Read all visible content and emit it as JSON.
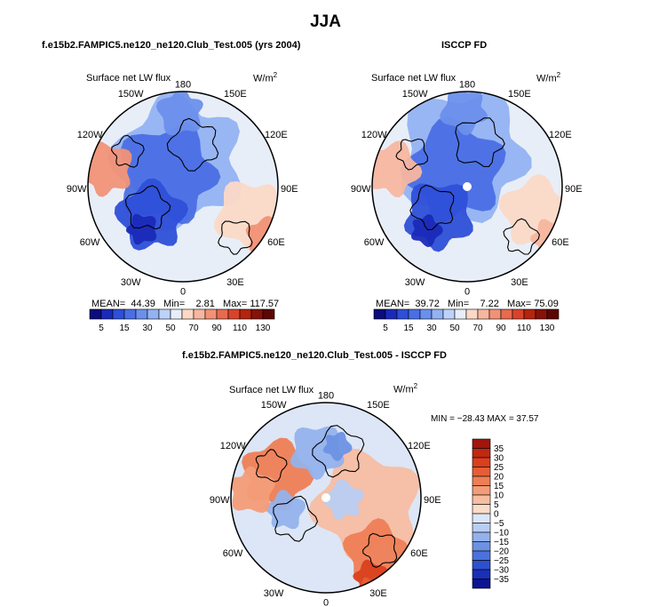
{
  "main_title": "JJA",
  "chart_data": [
    {
      "type": "heatmap",
      "projection": "north polar stereographic",
      "title": "f.e15b2.FAMPIC5.ne120_ne120.Club_Test.005 (yrs 2004)",
      "subtitle": "Surface net LW flux",
      "units": "W/m",
      "units_exp": "2",
      "longitude_labels": [
        "180",
        "150E",
        "120E",
        "90E",
        "60E",
        "30E",
        "0",
        "30W",
        "60W",
        "90W",
        "120W",
        "150W"
      ],
      "stats": {
        "mean_label": "MEAN=",
        "mean": "44.39",
        "min_label": "Min=",
        "min": "2.81",
        "max_label": "Max=",
        "max": "117.57"
      },
      "colorbar": {
        "orientation": "horizontal",
        "levels": [
          5,
          10,
          15,
          20,
          30,
          40,
          50,
          60,
          70,
          80,
          90,
          100,
          110,
          120,
          130
        ],
        "tick_labels": [
          "5",
          "15",
          "30",
          "50",
          "70",
          "90",
          "110",
          "130"
        ],
        "colors": [
          "#0c0c7c",
          "#1a2ab8",
          "#2e4fd8",
          "#4a6fe4",
          "#6b8fec",
          "#93b2f2",
          "#bcd2f8",
          "#e8eef8",
          "#fbd9c6",
          "#f7b6a0",
          "#f19277",
          "#e86a4f",
          "#d8442b",
          "#b5240f",
          "#86120a",
          "#5c0704"
        ]
      }
    },
    {
      "type": "heatmap",
      "projection": "north polar stereographic",
      "title": "ISCCP FD",
      "subtitle": "Surface net LW flux",
      "units": "W/m",
      "units_exp": "2",
      "longitude_labels": [
        "180",
        "150E",
        "120E",
        "90E",
        "60E",
        "30E",
        "0",
        "30W",
        "60W",
        "90W",
        "120W",
        "150W"
      ],
      "stats": {
        "mean_label": "MEAN=",
        "mean": "39.72",
        "min_label": "Min=",
        "min": "7.22",
        "max_label": "Max=",
        "max": "75.09"
      },
      "colorbar": {
        "orientation": "horizontal",
        "levels": [
          5,
          10,
          15,
          20,
          30,
          40,
          50,
          60,
          70,
          80,
          90,
          100,
          110,
          120,
          130
        ],
        "tick_labels": [
          "5",
          "15",
          "30",
          "50",
          "70",
          "90",
          "110",
          "130"
        ],
        "colors": [
          "#0c0c7c",
          "#1a2ab8",
          "#2e4fd8",
          "#4a6fe4",
          "#6b8fec",
          "#93b2f2",
          "#bcd2f8",
          "#e8eef8",
          "#fbd9c6",
          "#f7b6a0",
          "#f19277",
          "#e86a4f",
          "#d8442b",
          "#b5240f",
          "#86120a",
          "#5c0704"
        ]
      }
    },
    {
      "type": "heatmap",
      "projection": "north polar stereographic",
      "title": "f.e15b2.FAMPIC5.ne120_ne120.Club_Test.005 - ISCCP FD",
      "subtitle": "Surface net LW flux",
      "units": "W/m",
      "units_exp": "2",
      "longitude_labels": [
        "180",
        "150E",
        "120E",
        "90E",
        "60E",
        "30E",
        "0",
        "30W",
        "60W",
        "90W",
        "120W",
        "150W"
      ],
      "stats_text": "MIN = −28.43 MAX =  37.57",
      "colorbar": {
        "orientation": "vertical",
        "levels": [
          -35,
          -30,
          -25,
          -20,
          -15,
          -10,
          -5,
          0,
          5,
          10,
          15,
          20,
          25,
          30,
          35
        ],
        "tick_labels": [
          "35",
          "30",
          "25",
          "20",
          "15",
          "10",
          "5",
          "0",
          "−5",
          "−10",
          "−15",
          "−20",
          "−25",
          "−30",
          "−35"
        ],
        "colors": [
          "#a0150c",
          "#c1280f",
          "#d9401e",
          "#e65e35",
          "#ee7e55",
          "#f39c78",
          "#f7bda2",
          "#fbdcc8",
          "#dce6f6",
          "#b8cdf2",
          "#93b2ec",
          "#6d92e4",
          "#4a72dc",
          "#2c50d0",
          "#1a2eb8",
          "#0c1490"
        ]
      }
    }
  ]
}
